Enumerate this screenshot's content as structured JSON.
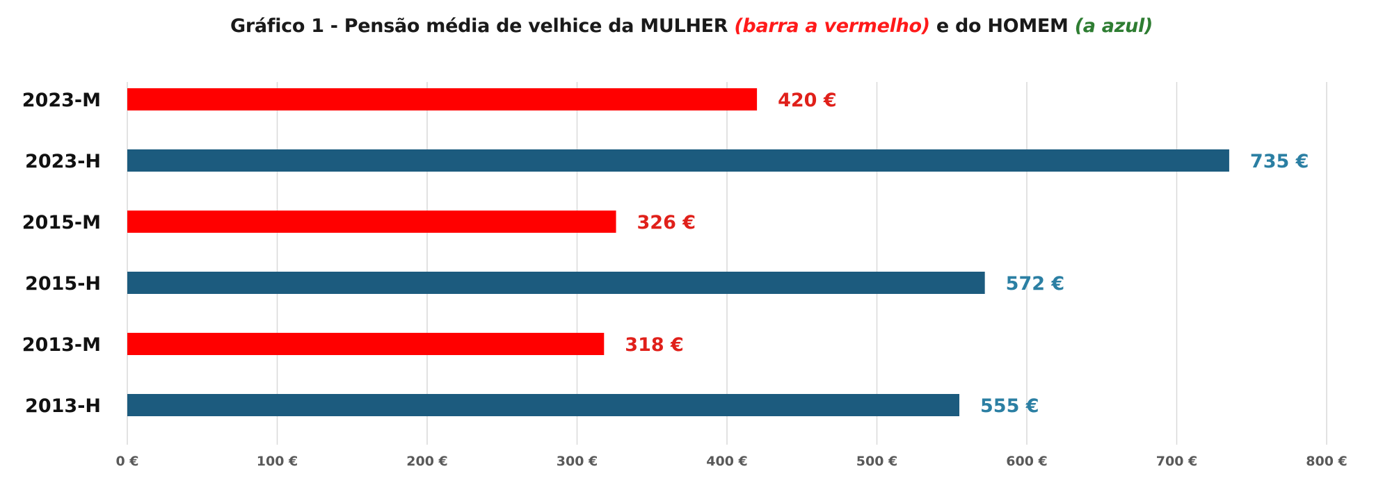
{
  "title": {
    "part1": "Gráfico 1 - Pensão média de velhice da MULHER ",
    "part2": "(barra a vermelho)",
    "part3": " e do HOMEM ",
    "part4": "(a azul)"
  },
  "colors": {
    "mulher": "#ff0000",
    "homem": "#1c5b7e",
    "homem_label": "#2b7fa3",
    "mulher_label": "#e0201a",
    "grid": "#d9d9d9",
    "axis_text": "#595959",
    "category_text": "#111111"
  },
  "chart_data": {
    "type": "bar",
    "orientation": "horizontal",
    "categories": [
      "2023-M",
      "2023-H",
      "2015-M",
      "2015-H",
      "2013-M",
      "2013-H"
    ],
    "values": [
      420,
      735,
      326,
      572,
      318,
      555
    ],
    "series_color_keys": [
      "mulher",
      "homem",
      "mulher",
      "homem",
      "mulher",
      "homem"
    ],
    "data_labels": [
      "420 €",
      "735 €",
      "326 €",
      "572 €",
      "318 €",
      "555 €"
    ],
    "xlim": [
      0,
      800
    ],
    "x_ticks": [
      0,
      100,
      200,
      300,
      400,
      500,
      600,
      700,
      800
    ],
    "x_tick_labels": [
      "0 €",
      "100 €",
      "200 €",
      "300 €",
      "400 €",
      "500 €",
      "600 €",
      "700 €",
      "800 €"
    ],
    "grid": true
  }
}
